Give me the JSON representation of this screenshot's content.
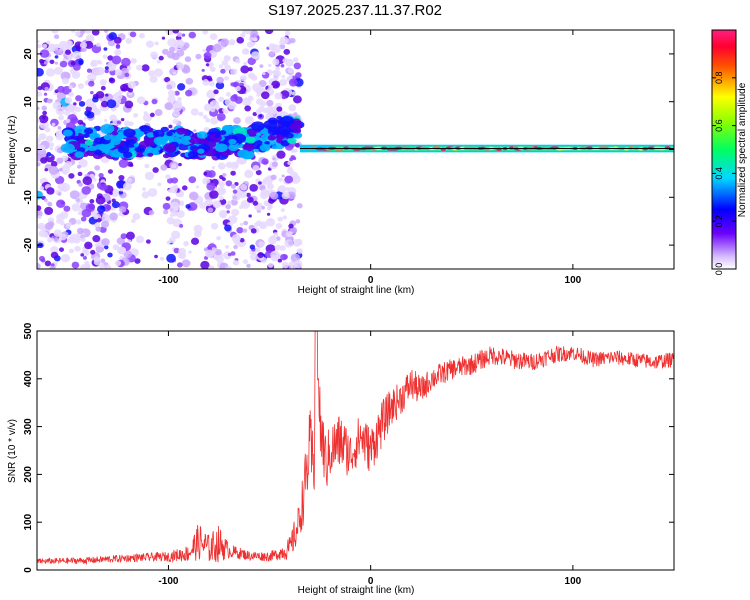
{
  "figure": {
    "title": "S197.2025.237.11.37.R02"
  },
  "colors": {
    "snr_line": "#ee3030",
    "doppler_trace": "#000000",
    "axis": "#000000"
  },
  "chart_data": [
    {
      "type": "heatmap",
      "xlabel": "Height of straight line (km)",
      "ylabel": "Frequency (Hz)",
      "xlim": [
        -165,
        150
      ],
      "ylim": [
        -25,
        25
      ],
      "xticks": [
        -100,
        0,
        100
      ],
      "yticks": [
        -20,
        -10,
        0,
        10,
        20
      ],
      "grid": false,
      "colorbar": {
        "label": "Normalized spectral amplitude",
        "range": [
          0,
          1
        ],
        "ticks": [
          0.0,
          0.2,
          0.4,
          0.6,
          0.8
        ],
        "colormap": "rainbow-violet-to-red",
        "placement": "right"
      },
      "features": {
        "noise_region_x": [
          -165,
          -35
        ],
        "signal_trace_x": [
          -35,
          150
        ],
        "signal_frequency_hz": 0.2,
        "turbulent_band_x": [
          -150,
          -35
        ],
        "turbulent_band_freq_hz": [
          -2,
          7
        ]
      }
    },
    {
      "type": "line",
      "xlabel": "Height of straight line (km)",
      "ylabel": "SNR (10 * v/v)",
      "xlim": [
        -165,
        150
      ],
      "ylim": [
        0,
        500
      ],
      "xticks": [
        -100,
        0,
        100
      ],
      "yticks": [
        0,
        100,
        200,
        300,
        400,
        500
      ],
      "grid": false,
      "series": [
        {
          "color": "#ee3030",
          "x": [
            -165,
            -140,
            -120,
            -100,
            -90,
            -85,
            -80,
            -75,
            -70,
            -60,
            -50,
            -45,
            -40,
            -36,
            -33,
            -30,
            -28,
            -27,
            -25,
            -22,
            -20,
            -15,
            -10,
            -5,
            0,
            5,
            10,
            15,
            20,
            25,
            30,
            40,
            50,
            60,
            70,
            80,
            90,
            100,
            110,
            120,
            130,
            140,
            150
          ],
          "y": [
            18,
            20,
            25,
            28,
            35,
            60,
            45,
            55,
            40,
            30,
            28,
            35,
            45,
            90,
            160,
            260,
            200,
            500,
            300,
            220,
            250,
            270,
            240,
            280,
            250,
            300,
            340,
            360,
            390,
            375,
            400,
            420,
            430,
            450,
            440,
            435,
            450,
            455,
            440,
            445,
            440,
            435,
            440
          ],
          "noise": [
            6,
            7,
            8,
            10,
            18,
            40,
            30,
            40,
            15,
            10,
            10,
            14,
            25,
            40,
            60,
            80,
            70,
            0,
            80,
            60,
            60,
            60,
            50,
            50,
            50,
            50,
            40,
            35,
            35,
            30,
            25,
            22,
            22,
            20,
            20,
            18,
            18,
            16,
            16,
            16,
            16,
            16,
            16
          ]
        }
      ]
    }
  ]
}
